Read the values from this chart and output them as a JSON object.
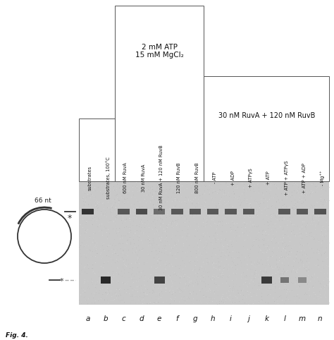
{
  "lane_labels": [
    "a",
    "b",
    "c",
    "d",
    "e",
    "f",
    "g",
    "h",
    "i",
    "j",
    "k",
    "l",
    "m",
    "n"
  ],
  "upper_band_present": [
    true,
    false,
    true,
    true,
    true,
    true,
    true,
    true,
    true,
    true,
    false,
    true,
    true,
    true
  ],
  "lower_band_present": [
    false,
    true,
    false,
    false,
    true,
    false,
    false,
    false,
    false,
    false,
    true,
    true,
    true,
    false
  ],
  "upper_band_intensity": [
    1.0,
    0,
    0.82,
    0.88,
    0.72,
    0.82,
    0.82,
    0.82,
    0.82,
    0.82,
    0,
    0.82,
    0.82,
    0.85
  ],
  "lower_band_intensity": [
    0,
    1.0,
    0,
    0,
    0.88,
    0,
    0,
    0,
    0,
    0,
    0.92,
    0.65,
    0.55,
    0
  ],
  "col_labels": [
    "substrates",
    "substrates, 100°C",
    "600 nM RuvA",
    "30 nM RuvA",
    "30 nM RuvA + 120 nM RuvB",
    "120 nM RuvB",
    "800 nM RuvB",
    "- ATP",
    "+ ADP",
    "+ ATPγS",
    "+ ATP",
    "+ ATP + ATPγS",
    "+ ATP + ADP",
    "- Mg⁺⁺"
  ],
  "box1_label": "2 mM ATP\n15 mM MgCl₂",
  "box2_label": "30 nM RuvA + 120 nM RuvB",
  "nt_label": "66 nt",
  "gel_color": "#c8c8c8",
  "band_dark": "#303030",
  "figure_caption_prefix": "Fig. 4."
}
